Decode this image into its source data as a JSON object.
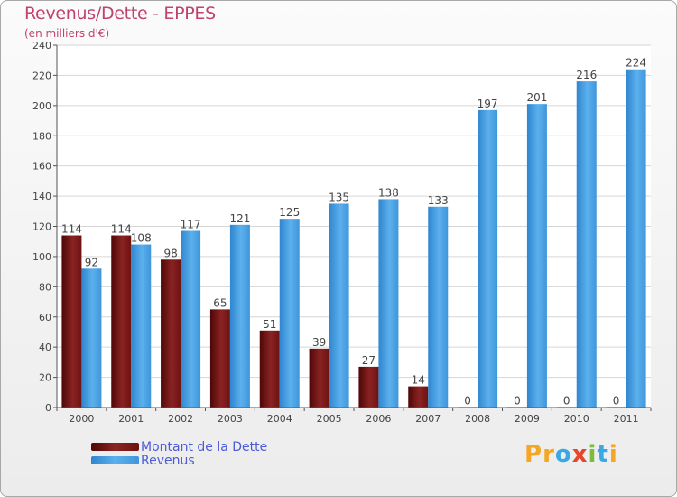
{
  "header": {
    "title": "Revenus/Dette - EPPES",
    "subtitle": "(en milliers d'€)"
  },
  "logo": {
    "text": "Proxiti",
    "letters": [
      {
        "ch": "P",
        "color": "#f5a623"
      },
      {
        "ch": "r",
        "color": "#f5a623"
      },
      {
        "ch": "o",
        "color": "#3aa8e4"
      },
      {
        "ch": "x",
        "color": "#e8452c"
      },
      {
        "ch": "i",
        "color": "#7dbb3b"
      },
      {
        "ch": "t",
        "color": "#3aa8e4"
      },
      {
        "ch": "i",
        "color": "#f5a623"
      }
    ]
  },
  "chart_data": {
    "type": "bar",
    "title": "Revenus/Dette - EPPES",
    "subtitle": "(en milliers d'€)",
    "categories": [
      "2000",
      "2001",
      "2002",
      "2003",
      "2004",
      "2005",
      "2006",
      "2007",
      "2008",
      "2009",
      "2010",
      "2011"
    ],
    "series": [
      {
        "name": "Montant de la Dette",
        "color": "#7a1717",
        "values": [
          114,
          114,
          98,
          65,
          51,
          39,
          27,
          14,
          0,
          0,
          0,
          0
        ]
      },
      {
        "name": "Revenus",
        "color": "#4ea3e3",
        "values": [
          92,
          108,
          117,
          121,
          125,
          135,
          138,
          133,
          197,
          201,
          216,
          224
        ]
      }
    ],
    "yticks": [
      0,
      20,
      40,
      60,
      80,
      100,
      120,
      140,
      160,
      180,
      200,
      220,
      240
    ],
    "ylim": [
      0,
      240
    ],
    "grid": true,
    "legend": "bottom-left"
  }
}
